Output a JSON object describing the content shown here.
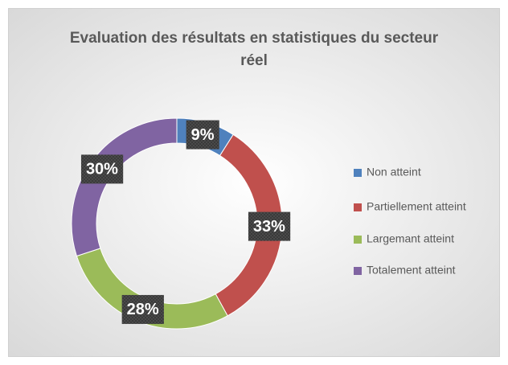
{
  "chart_data": {
    "type": "donut",
    "title": "Evaluation des résultats en statistiques du secteur réel",
    "categories": [
      "Non atteint",
      "Partiellement atteint",
      "Largemant atteint",
      "Totalement atteint"
    ],
    "values": [
      9,
      33,
      28,
      30
    ],
    "value_labels": [
      "9%",
      "33%",
      "28%",
      "30%"
    ],
    "colors": [
      "#4f81bd",
      "#c0504d",
      "#9bbb59",
      "#8064a2"
    ],
    "legend": "right"
  }
}
